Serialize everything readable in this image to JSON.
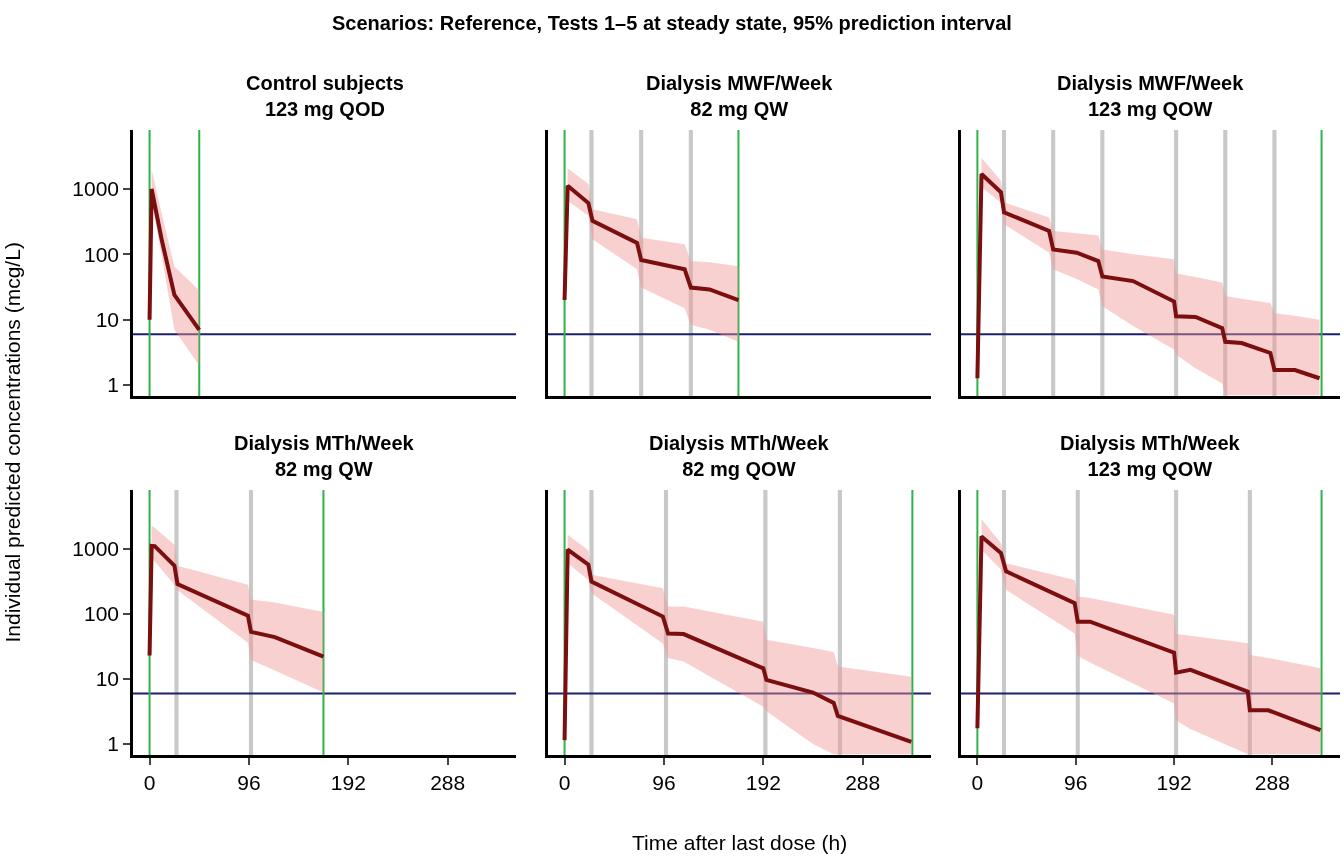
{
  "chart_data": [
    {
      "type": "line",
      "title": "Control subjects\n123 mg QOD",
      "annotations": [
        "Scenarios: Reference, Tests 1–5 at steady state, 95% prediction interval"
      ],
      "ylabel": "Individual predicted concentrations (mcg/L)",
      "log": "y",
      "xlim": [
        -16,
        354
      ],
      "ylim": [
        0.68,
        8000
      ],
      "xticks": [
        0,
        96,
        192,
        288
      ],
      "yticks": [
        1,
        10,
        100,
        1000
      ],
      "tick_labels": "y",
      "series": [
        {
          "color": "#7b0e0e",
          "x": [
            0,
            2,
            12,
            24,
            48
          ],
          "values": [
            10,
            1000,
            160,
            24,
            7
          ],
          "upper": [
            null,
            2000,
            400,
            65,
            28
          ],
          "lower": [
            null,
            650,
            90,
            7,
            2
          ]
        }
      ],
      "ref_lines": [
        {
          "axis": "y",
          "value": 6,
          "color": "#1b1f6e"
        },
        {
          "axis": "x",
          "value": 0,
          "color": "#2db34a"
        },
        {
          "axis": "x",
          "value": 48,
          "color": "#2db34a"
        }
      ]
    },
    {
      "type": "line",
      "title": "Dialysis MWF/Week\n82 mg QW",
      "log": "y",
      "xlim": [
        -16,
        354
      ],
      "ylim": [
        0.68,
        8000
      ],
      "xticks": [
        0,
        96,
        192,
        288
      ],
      "yticks": [
        1,
        10,
        100,
        1000
      ],
      "tick_labels": false,
      "series": [
        {
          "color": "#7b0e0e",
          "x": [
            0,
            3,
            23,
            27,
            70,
            74,
            116,
            122,
            140,
            168
          ],
          "values": [
            20,
            1120,
            610,
            325,
            150,
            82,
            59,
            31,
            29,
            20
          ],
          "upper": [
            null,
            2080,
            1190,
            490,
            345,
            180,
            143,
            79,
            76,
            66
          ],
          "lower": [
            null,
            660,
            390,
            170,
            59,
            31,
            15,
            8.4,
            7,
            4.6
          ]
        }
      ],
      "bands": [
        {
          "axis": "x",
          "from": 24,
          "to": 28,
          "color": "#c8c8c8"
        },
        {
          "axis": "x",
          "from": 72,
          "to": 76,
          "color": "#c8c8c8"
        },
        {
          "axis": "x",
          "from": 120,
          "to": 124,
          "color": "#c8c8c8"
        }
      ],
      "ref_lines": [
        {
          "axis": "y",
          "value": 6,
          "color": "#1b1f6e"
        },
        {
          "axis": "x",
          "value": 0,
          "color": "#2db34a"
        },
        {
          "axis": "x",
          "value": 168,
          "color": "#2db34a"
        }
      ]
    },
    {
      "type": "line",
      "title": "Dialysis MWF/Week\n123 mg QOW",
      "log": "y",
      "xlim": [
        -16,
        354
      ],
      "ylim": [
        0.68,
        8000
      ],
      "xticks": [
        0,
        96,
        192,
        288
      ],
      "yticks": [
        1,
        10,
        100,
        1000
      ],
      "tick_labels": false,
      "series": [
        {
          "color": "#7b0e0e",
          "x": [
            0,
            4,
            23,
            26,
            70,
            74,
            97,
            118,
            122,
            152,
            192,
            194,
            213,
            239,
            242,
            258,
            286,
            290,
            310,
            334
          ],
          "values": [
            1.27,
            1700,
            890,
            440,
            228,
            119,
            106,
            79,
            46,
            39,
            19,
            11.3,
            11,
            7.4,
            4.6,
            4.4,
            3.1,
            1.7,
            1.7,
            1.27
          ],
          "upper": [
            null,
            3000,
            1340,
            624,
            365,
            228,
            210,
            195,
            119,
            100,
            84,
            51,
            45,
            37,
            23,
            21,
            18,
            12.6,
            11.5,
            10
          ],
          "lower": [
            null,
            1060,
            624,
            290,
            106,
            59,
            42,
            29,
            16,
            8,
            3.5,
            2.9,
            1.8,
            1.06,
            0.7,
            0.7,
            0.7,
            0.7,
            0.7,
            0.7
          ]
        }
      ],
      "bands": [
        {
          "axis": "x",
          "from": 24,
          "to": 28,
          "color": "#c8c8c8"
        },
        {
          "axis": "x",
          "from": 72,
          "to": 76,
          "color": "#c8c8c8"
        },
        {
          "axis": "x",
          "from": 120,
          "to": 124,
          "color": "#c8c8c8"
        },
        {
          "axis": "x",
          "from": 192,
          "to": 196,
          "color": "#c8c8c8"
        },
        {
          "axis": "x",
          "from": 240,
          "to": 244,
          "color": "#c8c8c8"
        },
        {
          "axis": "x",
          "from": 288,
          "to": 292,
          "color": "#c8c8c8"
        }
      ],
      "ref_lines": [
        {
          "axis": "y",
          "value": 6,
          "color": "#1b1f6e"
        },
        {
          "axis": "x",
          "value": 0,
          "color": "#2db34a"
        },
        {
          "axis": "x",
          "value": 336,
          "color": "#2db34a"
        }
      ]
    },
    {
      "type": "line",
      "title": "Dialysis MTh/Week\n82 mg QW",
      "log": "y",
      "xlim": [
        -16,
        354
      ],
      "ylim": [
        0.68,
        8000
      ],
      "xticks": [
        0,
        96,
        192,
        288
      ],
      "yticks": [
        1,
        10,
        100,
        1000
      ],
      "series": [
        {
          "color": "#7b0e0e",
          "x": [
            0,
            2,
            5,
            24,
            27,
            95,
            98,
            121,
            168
          ],
          "values": [
            23,
            1110,
            1100,
            550,
            287,
            94,
            53,
            44,
            22
          ],
          "upper": [
            null,
            2280,
            2100,
            1150,
            550,
            280,
            166,
            150,
            107
          ],
          "lower": [
            null,
            680,
            640,
            280,
            230,
            36,
            19.6,
            13.5,
            6.2
          ]
        }
      ],
      "bands": [
        {
          "axis": "x",
          "from": 24,
          "to": 28,
          "color": "#c8c8c8"
        },
        {
          "axis": "x",
          "from": 96,
          "to": 100,
          "color": "#c8c8c8"
        }
      ],
      "ref_lines": [
        {
          "axis": "y",
          "value": 6,
          "color": "#1b1f6e"
        },
        {
          "axis": "x",
          "value": 0,
          "color": "#2db34a"
        },
        {
          "axis": "x",
          "value": 168,
          "color": "#2db34a"
        }
      ]
    },
    {
      "type": "line",
      "title": "Dialysis MTh/Week\n82 mg QOW",
      "xlabel": "Time after last dose (h)",
      "log": "y",
      "xlim": [
        -16,
        354
      ],
      "ylim": [
        0.68,
        8000
      ],
      "xticks": [
        0,
        96,
        192,
        288
      ],
      "yticks": [
        1,
        10,
        100,
        1000
      ],
      "tick_labels": "x",
      "series": [
        {
          "color": "#7b0e0e",
          "x": [
            0,
            3,
            23,
            26,
            95,
            100,
            115,
            192,
            195,
            240,
            260,
            264,
            335
          ],
          "values": [
            1.15,
            970,
            570,
            314,
            91,
            50,
            49,
            14.6,
            9.7,
            6.2,
            4.3,
            2.7,
            1.08
          ],
          "upper": [
            null,
            1640,
            950,
            400,
            248,
            130,
            130,
            76,
            40,
            30,
            26,
            15.5,
            10.8
          ],
          "lower": [
            null,
            600,
            333,
            208,
            35,
            21,
            18.5,
            3.75,
            3.2,
            1.0,
            0.7,
            0.7,
            0.7
          ]
        }
      ],
      "bands": [
        {
          "axis": "x",
          "from": 24,
          "to": 28,
          "color": "#c8c8c8"
        },
        {
          "axis": "x",
          "from": 96,
          "to": 100,
          "color": "#c8c8c8"
        },
        {
          "axis": "x",
          "from": 192,
          "to": 196,
          "color": "#c8c8c8"
        },
        {
          "axis": "x",
          "from": 264,
          "to": 268,
          "color": "#c8c8c8"
        }
      ],
      "ref_lines": [
        {
          "axis": "y",
          "value": 6,
          "color": "#1b1f6e"
        },
        {
          "axis": "x",
          "value": 0,
          "color": "#2db34a"
        },
        {
          "axis": "x",
          "value": 336,
          "color": "#2db34a"
        }
      ]
    },
    {
      "type": "line",
      "title": "Dialysis MTh/Week\n123 mg QOW",
      "log": "y",
      "xlim": [
        -16,
        354
      ],
      "ylim": [
        0.68,
        8000
      ],
      "xticks": [
        0,
        96,
        192,
        288
      ],
      "yticks": [
        1,
        10,
        100,
        1000
      ],
      "tick_labels": "x",
      "series": [
        {
          "color": "#7b0e0e",
          "x": [
            0,
            4,
            23,
            28,
            95,
            98,
            110,
            192,
            194,
            208,
            264,
            266,
            284,
            335
          ],
          "values": [
            1.75,
            1550,
            860,
            450,
            146,
            76,
            76,
            25.4,
            12.5,
            13.8,
            6.4,
            3.3,
            3.3,
            1.64
          ],
          "upper": [
            null,
            2860,
            1220,
            600,
            333,
            185,
            175,
            97,
            49,
            46,
            35.5,
            23.4,
            21,
            14.6
          ],
          "lower": [
            null,
            965,
            475,
            234,
            50,
            22.6,
            18,
            4.2,
            2.3,
            1.7,
            0.7,
            0.7,
            0.7,
            0.7
          ]
        }
      ],
      "bands": [
        {
          "axis": "x",
          "from": 24,
          "to": 28,
          "color": "#c8c8c8"
        },
        {
          "axis": "x",
          "from": 96,
          "to": 100,
          "color": "#c8c8c8"
        },
        {
          "axis": "x",
          "from": 192,
          "to": 196,
          "color": "#c8c8c8"
        },
        {
          "axis": "x",
          "from": 264,
          "to": 268,
          "color": "#c8c8c8"
        }
      ],
      "ref_lines": [
        {
          "axis": "y",
          "value": 6,
          "color": "#1b1f6e"
        },
        {
          "axis": "x",
          "value": 0,
          "color": "#2db34a"
        },
        {
          "axis": "x",
          "value": 336,
          "color": "#2db34a"
        }
      ]
    }
  ]
}
